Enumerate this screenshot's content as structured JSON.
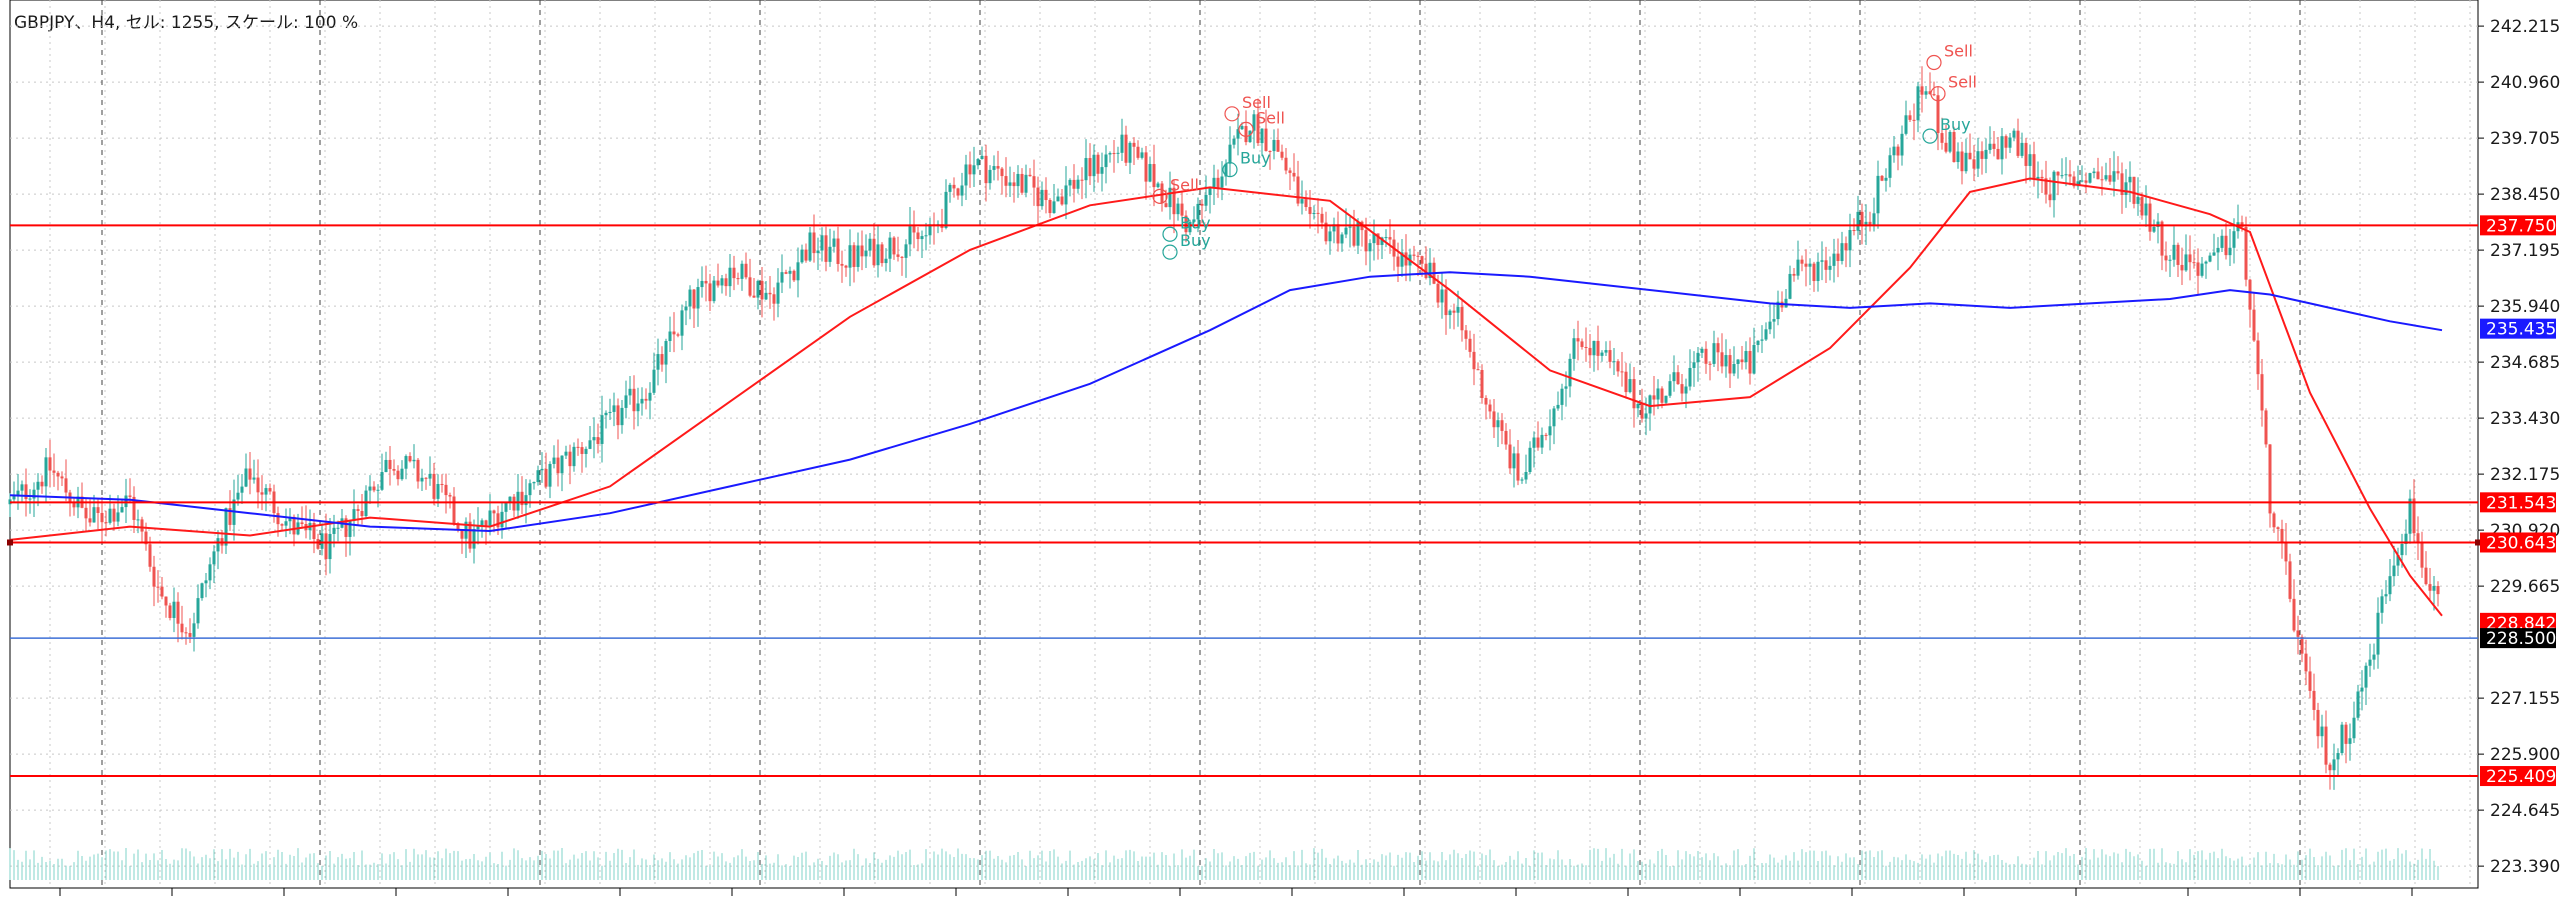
{
  "chart_title": "GBPJPY、H4, セル: 1255, スケール: 100 %",
  "colors": {
    "background": "#ffffff",
    "bull_candle": "#26a69a",
    "bear_candle": "#ef5350",
    "sma_fast": "#ff1a1a",
    "sma_slow": "#1a1aff",
    "horizontal_level": "#ff0000",
    "bid_line": "#3d6fd6",
    "volume": "#7fd3c8",
    "grid": "#c8c8c8",
    "period_separator": "#404040"
  },
  "chart_data": {
    "type": "candlestick",
    "symbol": "GBPJPY",
    "timeframe": "H4",
    "y_axis": {
      "ticks": [
        "242.215",
        "240.960",
        "239.705",
        "238.450",
        "237.195",
        "235.940",
        "234.685",
        "233.430",
        "232.175",
        "230.920",
        "229.665",
        "227.155",
        "225.900",
        "224.645",
        "223.390"
      ],
      "ylim": [
        223.39,
        242.215
      ]
    },
    "price_path": [
      [
        0,
        231.5
      ],
      [
        20,
        232.3
      ],
      [
        40,
        231.1
      ],
      [
        60,
        231.6
      ],
      [
        75,
        229.5
      ],
      [
        90,
        228.7
      ],
      [
        105,
        230.8
      ],
      [
        120,
        232.2
      ],
      [
        140,
        231.0
      ],
      [
        160,
        230.5
      ],
      [
        175,
        231.5
      ],
      [
        190,
        232.5
      ],
      [
        210,
        232.0
      ],
      [
        230,
        230.7
      ],
      [
        250,
        231.6
      ],
      [
        270,
        232.2
      ],
      [
        300,
        233.3
      ],
      [
        320,
        234.2
      ],
      [
        340,
        236.0
      ],
      [
        360,
        236.8
      ],
      [
        380,
        236.2
      ],
      [
        400,
        237.3
      ],
      [
        420,
        237.0
      ],
      [
        440,
        237.3
      ],
      [
        460,
        237.5
      ],
      [
        480,
        239.2
      ],
      [
        500,
        238.8
      ],
      [
        520,
        238.3
      ],
      [
        540,
        239.0
      ],
      [
        555,
        239.5
      ],
      [
        570,
        238.9
      ],
      [
        590,
        237.7
      ],
      [
        610,
        239.3
      ],
      [
        620,
        240.1
      ],
      [
        635,
        239.4
      ],
      [
        650,
        237.7
      ],
      [
        670,
        237.6
      ],
      [
        690,
        237.2
      ],
      [
        710,
        236.6
      ],
      [
        725,
        235.5
      ],
      [
        740,
        233.6
      ],
      [
        755,
        232.0
      ],
      [
        770,
        233.5
      ],
      [
        785,
        235.3
      ],
      [
        800,
        234.6
      ],
      [
        815,
        233.7
      ],
      [
        830,
        234.1
      ],
      [
        850,
        234.8
      ],
      [
        870,
        234.6
      ],
      [
        890,
        236.6
      ],
      [
        910,
        237.0
      ],
      [
        930,
        238.1
      ],
      [
        945,
        239.7
      ],
      [
        958,
        240.9
      ],
      [
        968,
        239.6
      ],
      [
        980,
        239.0
      ],
      [
        1000,
        239.7
      ],
      [
        1020,
        238.6
      ],
      [
        1040,
        238.9
      ],
      [
        1060,
        238.7
      ],
      [
        1080,
        237.1
      ],
      [
        1100,
        236.8
      ],
      [
        1115,
        237.8
      ],
      [
        1122,
        235.2
      ],
      [
        1130,
        231.6
      ],
      [
        1138,
        229.9
      ],
      [
        1150,
        227.0
      ],
      [
        1160,
        225.7
      ],
      [
        1170,
        226.6
      ],
      [
        1180,
        228.0
      ],
      [
        1190,
        230.1
      ],
      [
        1200,
        231.4
      ],
      [
        1210,
        229.5
      ],
      [
        1216,
        229.0
      ]
    ],
    "series": [
      {
        "name": "MA",
        "points": [
          [
            0,
            230.7
          ],
          [
            60,
            231.0
          ],
          [
            120,
            230.8
          ],
          [
            180,
            231.2
          ],
          [
            240,
            231.0
          ],
          [
            300,
            231.9
          ],
          [
            360,
            233.8
          ],
          [
            420,
            235.7
          ],
          [
            480,
            237.2
          ],
          [
            540,
            238.2
          ],
          [
            600,
            238.6
          ],
          [
            660,
            238.3
          ],
          [
            720,
            236.3
          ],
          [
            770,
            234.5
          ],
          [
            820,
            233.7
          ],
          [
            870,
            233.9
          ],
          [
            910,
            235.0
          ],
          [
            950,
            236.8
          ],
          [
            980,
            238.5
          ],
          [
            1010,
            238.8
          ],
          [
            1060,
            238.5
          ],
          [
            1100,
            238.0
          ],
          [
            1120,
            237.6
          ],
          [
            1150,
            234.0
          ],
          [
            1180,
            231.4
          ],
          [
            1200,
            229.9
          ],
          [
            1216,
            229.0
          ]
        ]
      },
      {
        "name": "MA",
        "points": [
          [
            0,
            231.7
          ],
          [
            60,
            231.6
          ],
          [
            120,
            231.3
          ],
          [
            180,
            231.0
          ],
          [
            240,
            230.9
          ],
          [
            300,
            231.3
          ],
          [
            360,
            231.9
          ],
          [
            420,
            232.5
          ],
          [
            480,
            233.3
          ],
          [
            540,
            234.2
          ],
          [
            600,
            235.4
          ],
          [
            640,
            236.3
          ],
          [
            680,
            236.6
          ],
          [
            720,
            236.7
          ],
          [
            760,
            236.6
          ],
          [
            800,
            236.4
          ],
          [
            840,
            236.2
          ],
          [
            880,
            236.0
          ],
          [
            920,
            235.9
          ],
          [
            960,
            236.0
          ],
          [
            1000,
            235.9
          ],
          [
            1040,
            236.0
          ],
          [
            1080,
            236.1
          ],
          [
            1110,
            236.3
          ],
          [
            1130,
            236.2
          ],
          [
            1150,
            236.0
          ],
          [
            1170,
            235.8
          ],
          [
            1190,
            235.6
          ],
          [
            1216,
            235.4
          ]
        ]
      }
    ],
    "horizontal_levels": [
      {
        "label": "237.750",
        "value": 237.75,
        "color": "#ff0000"
      },
      {
        "label": "231.543",
        "value": 231.543,
        "color": "#ff0000"
      },
      {
        "label": "230.643",
        "value": 230.643,
        "color": "#ff0000"
      },
      {
        "label": "225.409",
        "value": 225.409,
        "color": "#ff0000"
      }
    ],
    "price_tags": [
      {
        "label": "235.435",
        "value": 235.435,
        "color": "#1a1aff"
      },
      {
        "label": "228.842",
        "value": 228.842,
        "color": "#ff0000"
      },
      {
        "label": "228.500",
        "value": 228.5,
        "color": "#000000"
      }
    ],
    "bid_line": {
      "value": 228.5
    },
    "signals": [
      {
        "text": "Sell",
        "price": 240.25,
        "index": 611,
        "color": "#ef5350"
      },
      {
        "text": "Sell",
        "price": 239.9,
        "index": 618,
        "color": "#ef5350"
      },
      {
        "text": "Buy",
        "price": 239.0,
        "index": 610,
        "color": "#26a69a"
      },
      {
        "text": "Sell",
        "price": 238.4,
        "index": 575,
        "color": "#ef5350"
      },
      {
        "text": "Buy",
        "price": 237.55,
        "index": 580,
        "color": "#26a69a"
      },
      {
        "text": "Buy",
        "price": 237.15,
        "index": 580,
        "color": "#26a69a"
      },
      {
        "text": "Sell",
        "price": 241.4,
        "index": 962,
        "color": "#ef5350"
      },
      {
        "text": "Sell",
        "price": 240.7,
        "index": 964,
        "color": "#ef5350"
      },
      {
        "text": "Buy",
        "price": 239.75,
        "index": 960,
        "color": "#26a69a"
      }
    ]
  }
}
